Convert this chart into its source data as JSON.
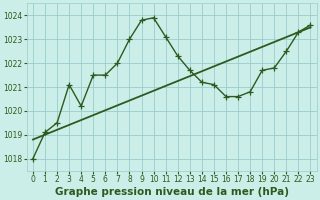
{
  "title": "Graphe pression niveau de la mer (hPa)",
  "bg_color": "#cceee8",
  "grid_color": "#99cccc",
  "line_color": "#2d5a1e",
  "xlim": [
    -0.5,
    23.5
  ],
  "ylim": [
    1017.5,
    1024.5
  ],
  "yticks": [
    1018,
    1019,
    1020,
    1021,
    1022,
    1023,
    1024
  ],
  "xticks": [
    0,
    1,
    2,
    3,
    4,
    5,
    6,
    7,
    8,
    9,
    10,
    11,
    12,
    13,
    14,
    15,
    16,
    17,
    18,
    19,
    20,
    21,
    22,
    23
  ],
  "line1_x": [
    0,
    1,
    2,
    3,
    4,
    5,
    6,
    7,
    8,
    9,
    10,
    11,
    12,
    13,
    14,
    15,
    16,
    17,
    18,
    19,
    20,
    21,
    22,
    23
  ],
  "line1_y": [
    1018.0,
    1019.1,
    1019.5,
    1021.1,
    1020.2,
    1021.5,
    1021.5,
    1022.0,
    1023.0,
    1023.8,
    1023.9,
    1023.1,
    1022.3,
    1021.7,
    1021.2,
    1021.1,
    1020.6,
    1020.6,
    1020.8,
    1021.7,
    1021.8,
    1022.5,
    1023.3,
    1023.6
  ],
  "line2_x": [
    0,
    23
  ],
  "line2_y": [
    1018.8,
    1023.5
  ],
  "marker": "+",
  "markersize": 4,
  "linewidth": 1.0,
  "linewidth2": 1.3,
  "title_fontsize": 7.5,
  "tick_fontsize": 5.5
}
